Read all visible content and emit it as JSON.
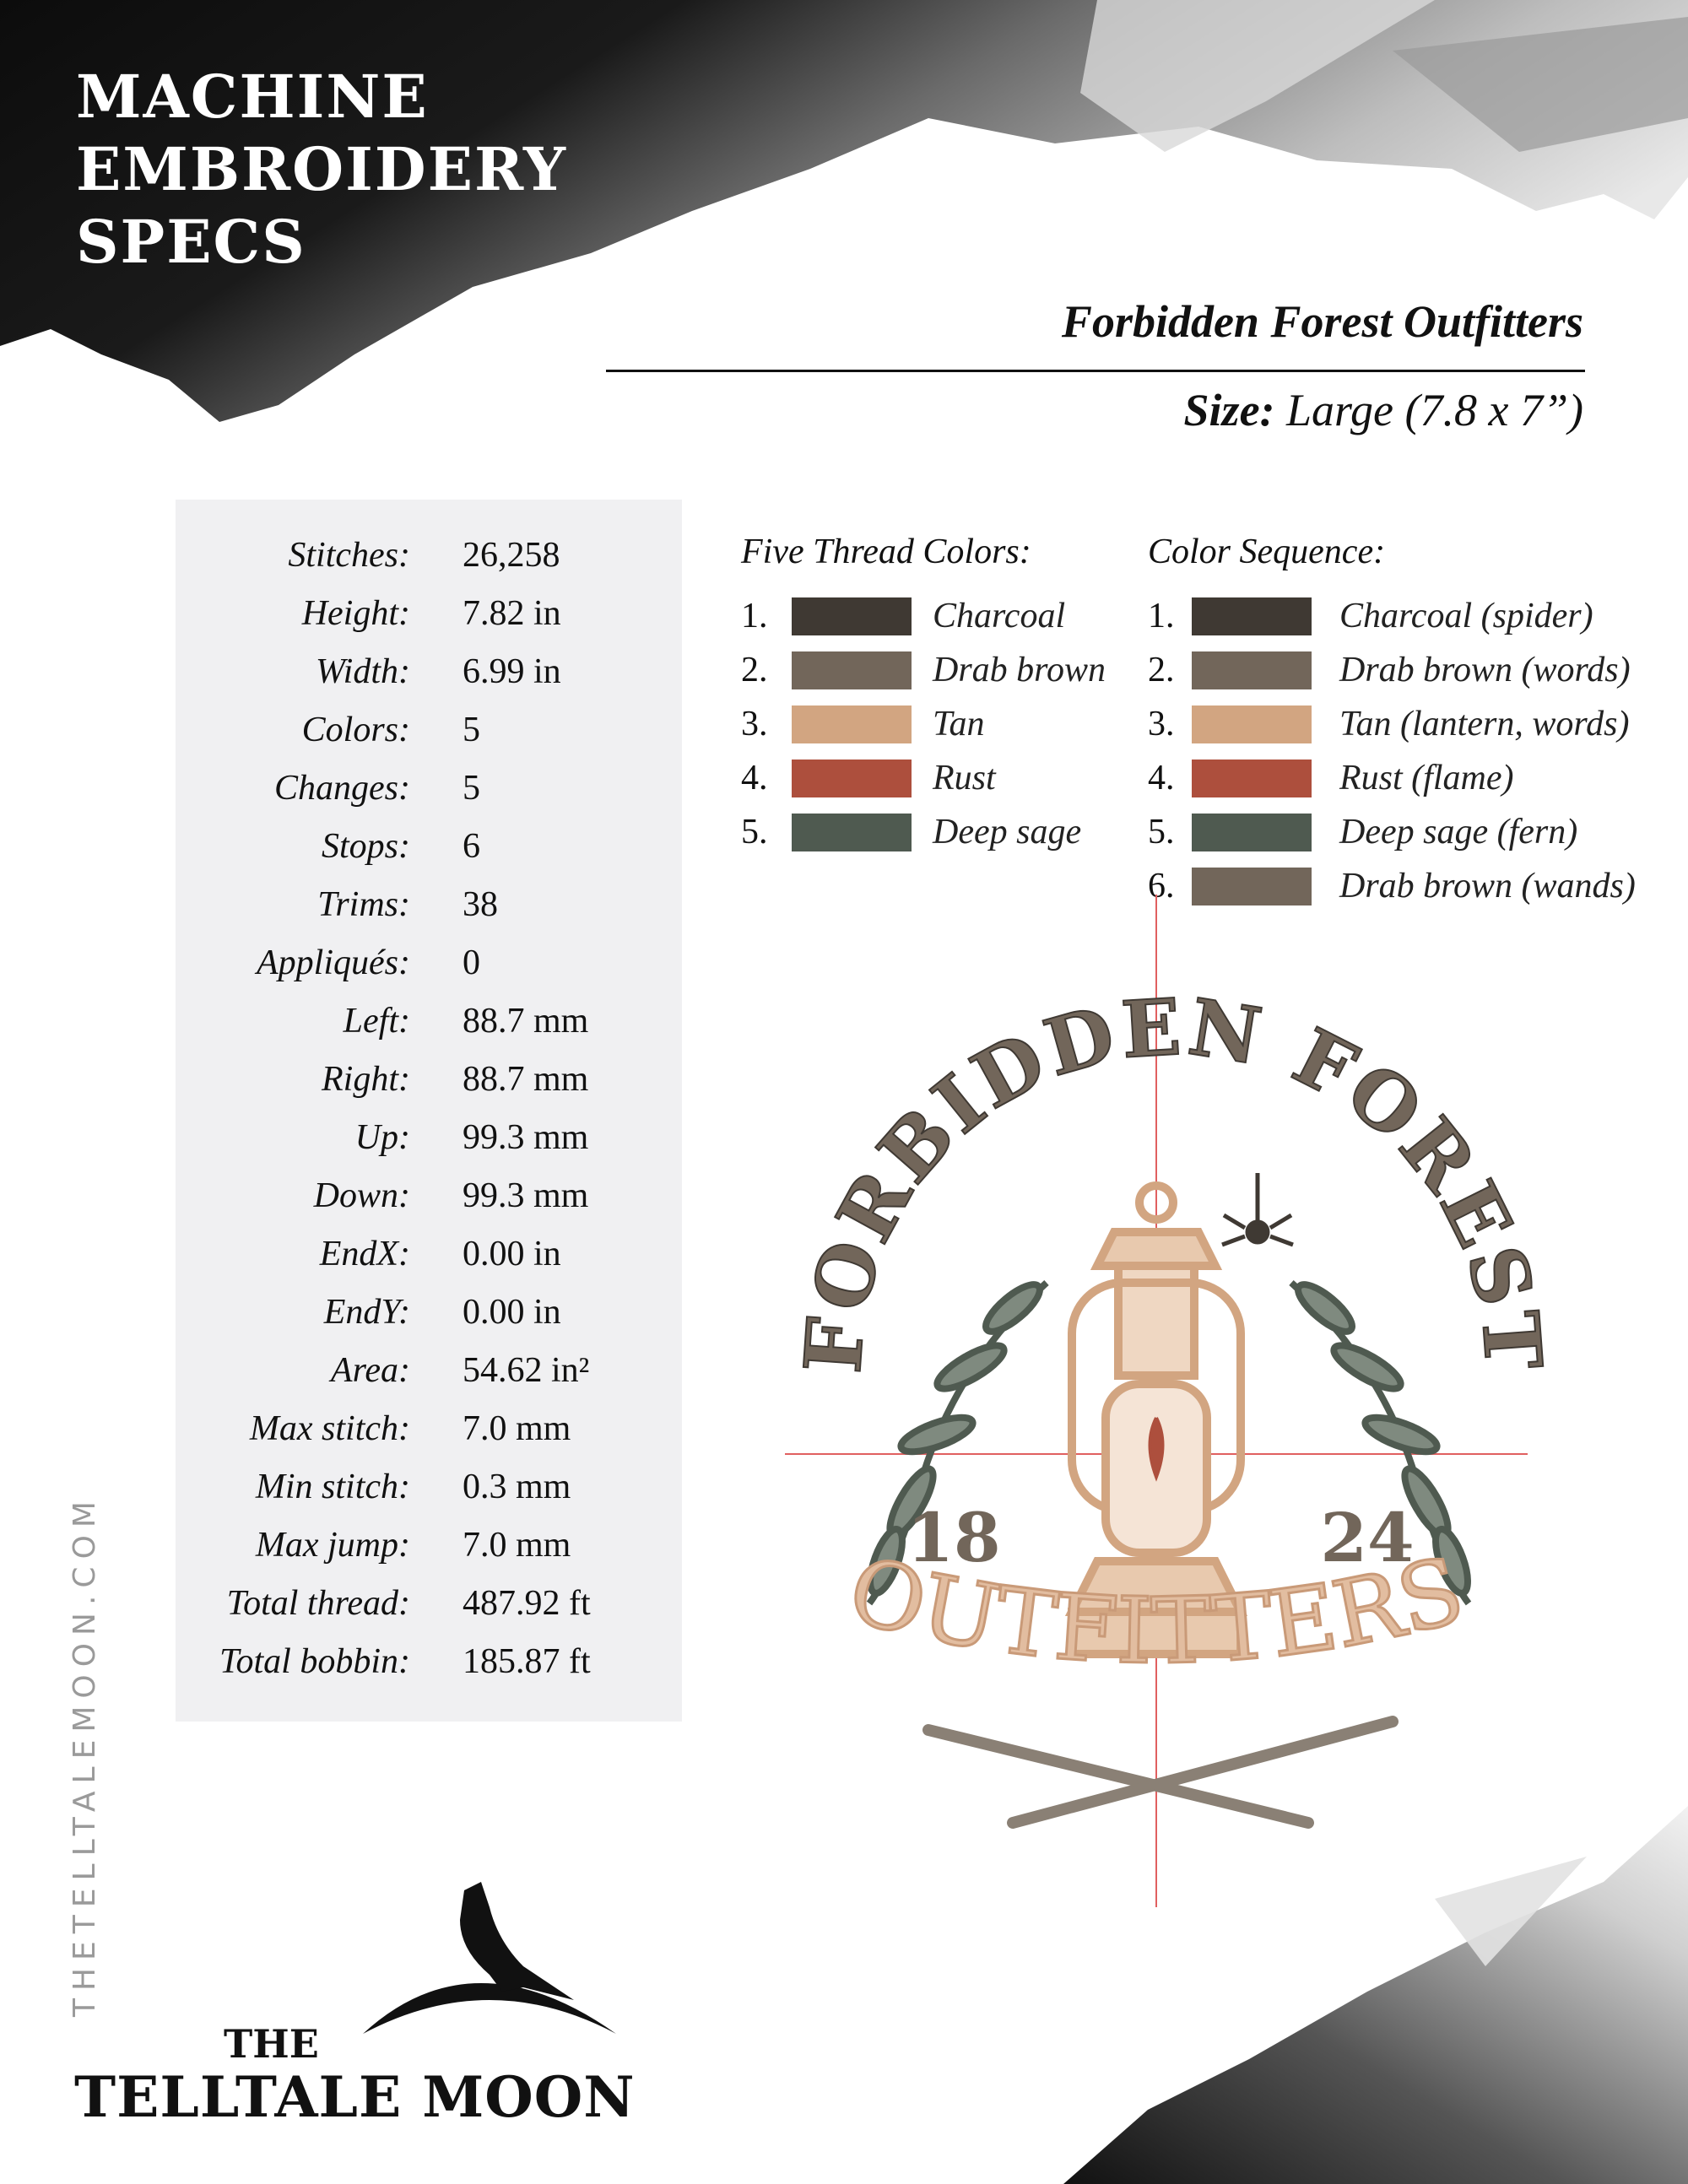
{
  "header": {
    "title_lines": [
      "MACHINE",
      "EMBROIDERY",
      "SPECS"
    ],
    "design_name": "Forbidden Forest Outfitters",
    "size_label": "Size:",
    "size_value": "Large (7.8 x 7”)"
  },
  "stats": [
    {
      "label": "Stitches:",
      "value": "26,258"
    },
    {
      "label": "Height:",
      "value": "7.82 in"
    },
    {
      "label": "Width:",
      "value": "6.99 in"
    },
    {
      "label": "Colors:",
      "value": "5"
    },
    {
      "label": "Changes:",
      "value": "5"
    },
    {
      "label": "Stops:",
      "value": "6"
    },
    {
      "label": "Trims:",
      "value": "38"
    },
    {
      "label": "Appliqués:",
      "value": "0"
    },
    {
      "label": "Left:",
      "value": "88.7 mm"
    },
    {
      "label": "Right:",
      "value": "88.7 mm"
    },
    {
      "label": "Up:",
      "value": "99.3 mm"
    },
    {
      "label": "Down:",
      "value": "99.3 mm"
    },
    {
      "label": "EndX:",
      "value": "0.00 in"
    },
    {
      "label": "EndY:",
      "value": "0.00 in"
    },
    {
      "label": "Area:",
      "value": "54.62 in²"
    },
    {
      "label": "Max stitch:",
      "value": "7.0 mm"
    },
    {
      "label": "Min stitch:",
      "value": "0.3 mm"
    },
    {
      "label": "Max jump:",
      "value": "7.0 mm"
    },
    {
      "label": "Total thread:",
      "value": "487.92 ft"
    },
    {
      "label": "Total bobbin:",
      "value": "185.87 ft"
    }
  ],
  "thread_colors": {
    "heading": "Five Thread Colors:",
    "items": [
      {
        "num": "1.",
        "name": "Charcoal",
        "color": "#3f3933"
      },
      {
        "num": "2.",
        "name": "Drab brown",
        "color": "#72665a"
      },
      {
        "num": "3.",
        "name": "Tan",
        "color": "#d2a581"
      },
      {
        "num": "4.",
        "name": "Rust",
        "color": "#ad4f3d"
      },
      {
        "num": "5.",
        "name": "Deep sage",
        "color": "#4f5a50"
      }
    ]
  },
  "color_sequence": {
    "heading": "Color Sequence:",
    "items": [
      {
        "num": "1.",
        "name": "Charcoal (spider)",
        "color": "#3f3933"
      },
      {
        "num": "2.",
        "name": "Drab brown (words)",
        "color": "#72665a"
      },
      {
        "num": "3.",
        "name": "Tan (lantern, words)",
        "color": "#d2a581"
      },
      {
        "num": "4.",
        "name": "Rust (flame)",
        "color": "#ad4f3d"
      },
      {
        "num": "5.",
        "name": "Deep sage (fern)",
        "color": "#4f5a50"
      },
      {
        "num": "6.",
        "name": "Drab brown (wands)",
        "color": "#72665a"
      }
    ]
  },
  "design": {
    "arc_text": "FORBIDDEN FOREST",
    "year_left": "18",
    "year_right": "24",
    "bottom_text": "OUTFITTERS"
  },
  "footer": {
    "website": "THETELLTALEMOON.COM",
    "logo_the": "THE",
    "logo_name": "TELLTALE MOON"
  }
}
